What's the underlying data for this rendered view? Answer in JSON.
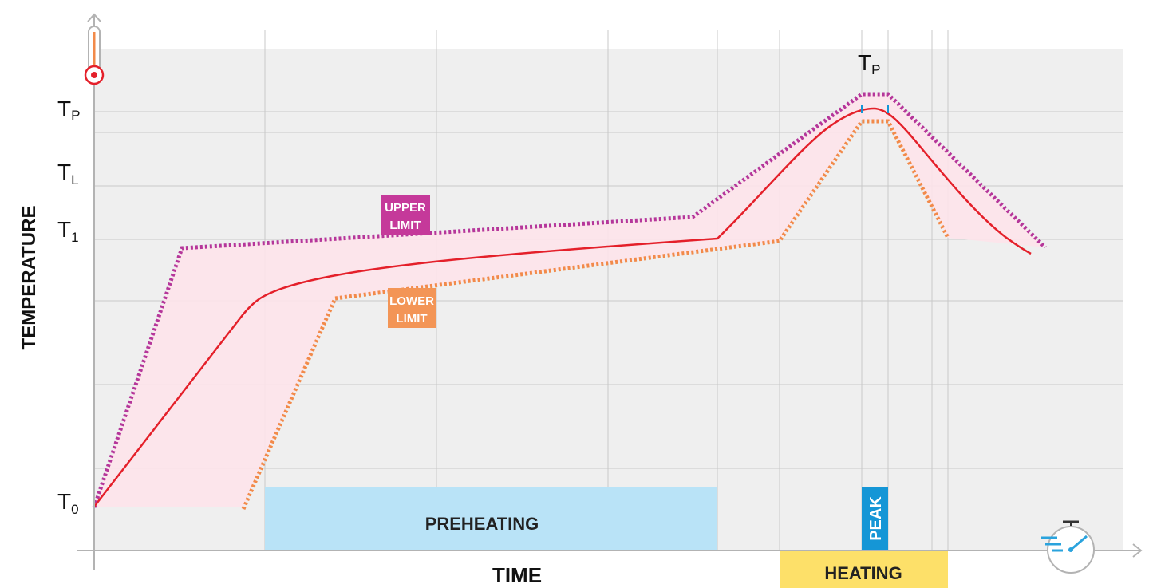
{
  "axes": {
    "y_label": "TEMPERATURE",
    "x_label": "TIME",
    "y_ticks": [
      {
        "main": "T",
        "sub": "P"
      },
      {
        "main": "T",
        "sub": "L"
      },
      {
        "main": "T",
        "sub": "1"
      },
      {
        "main": "T",
        "sub": "0"
      }
    ],
    "peak_label": {
      "main": "T",
      "sub": "P"
    }
  },
  "labels": {
    "upper_limit": [
      "UPPER",
      "LIMIT"
    ],
    "lower_limit": [
      "LOWER",
      "LIMIT"
    ],
    "preheating": "PREHEATING",
    "heating": "HEATING",
    "peak": "PEAK"
  },
  "colors": {
    "grid_bg": "#efefef",
    "grid_line": "#c8c8c8",
    "profile": "#e4202a",
    "upper_limit": "#b5369a",
    "lower_limit": "#f28a4a",
    "band_fill": "#fde3ea",
    "preheating_fill": "#b9e3f7",
    "heating_fill": "#fde069",
    "peak_fill": "#1596d6",
    "upper_tag": "#c5399a",
    "lower_tag": "#f39556",
    "axis": "#b3b3b3",
    "icon_blue": "#2aa3dd"
  },
  "icons": [
    "thermometer-icon",
    "stopwatch-icon"
  ]
}
